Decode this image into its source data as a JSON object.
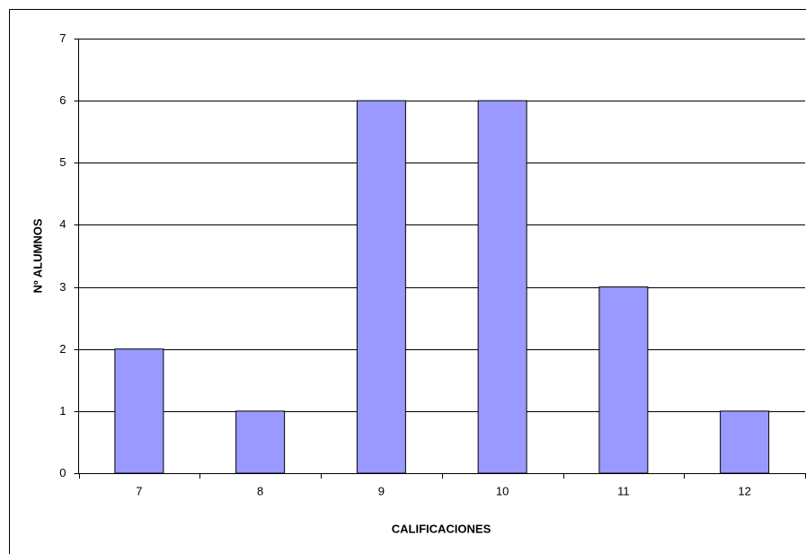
{
  "chart_data": {
    "type": "bar",
    "x_label": "CALIFICACIONES",
    "y_label": "Nº ALUMNOS",
    "categories": [
      "7",
      "8",
      "9",
      "10",
      "11",
      "12"
    ],
    "values": [
      2,
      1,
      6,
      6,
      3,
      1
    ],
    "color": "#9999ff",
    "ylim": [
      0,
      7
    ],
    "yticks": [
      0,
      1,
      2,
      3,
      4,
      5,
      6,
      7
    ],
    "grid": true
  }
}
